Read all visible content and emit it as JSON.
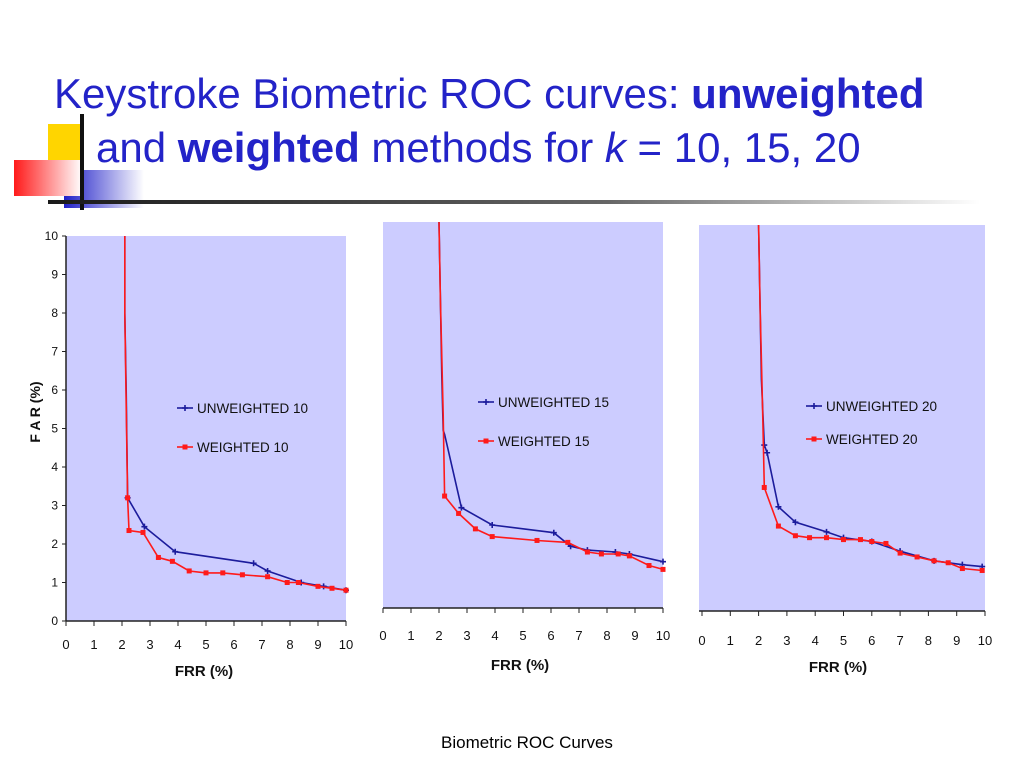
{
  "title": {
    "line1_plain": "Keystroke Biometric ROC curves: ",
    "line1_bold": "unweighted",
    "line2_plain_a": "and ",
    "line2_bold": "weighted",
    "line2_plain_b": " methods for ",
    "line2_italic": "k",
    "line2_plain_c": " = 10, 15, 20"
  },
  "footer": "Biometric ROC Curves",
  "colors": {
    "title": "#2323c8",
    "plot_bg": "#ccccff",
    "unweighted": "#1c1c9c",
    "weighted": "#ff1a1a",
    "deco_yellow": "#ffd500",
    "deco_blue": "#2a2ad0",
    "deco_red": "#ff3030"
  },
  "chart_data": [
    {
      "type": "line",
      "xlabel": "FRR (%)",
      "ylabel": "F A R (%)",
      "xlim": [
        0,
        10
      ],
      "ylim": [
        0,
        10
      ],
      "xticks": [
        "0",
        "1",
        "2",
        "3",
        "4",
        "5",
        "6",
        "7",
        "8",
        "9",
        "10"
      ],
      "yticks": [
        "0",
        "1",
        "2",
        "3",
        "4",
        "5",
        "6",
        "7",
        "8",
        "9",
        "10"
      ],
      "grid": false,
      "legend_position": "center-right",
      "series": [
        {
          "name": "UNWEIGHTED 10",
          "color": "#1c1c9c",
          "x": [
            2.1,
            2.1,
            2.15,
            2.2,
            2.8,
            3.9,
            6.7,
            7.2,
            8.4,
            9.2,
            10.0
          ],
          "y": [
            10.0,
            8.0,
            6.0,
            3.2,
            2.45,
            1.8,
            1.5,
            1.3,
            1.0,
            0.9,
            0.8
          ]
        },
        {
          "name": "WEIGHTED 10",
          "color": "#ff1a1a",
          "x": [
            2.1,
            2.1,
            2.2,
            2.25,
            2.75,
            3.3,
            3.8,
            4.4,
            5.0,
            5.6,
            6.3,
            7.2,
            7.9,
            8.3,
            9.0,
            9.5,
            10.0
          ],
          "y": [
            10.0,
            8.0,
            3.2,
            2.35,
            2.3,
            1.65,
            1.55,
            1.3,
            1.25,
            1.25,
            1.2,
            1.15,
            1.0,
            1.0,
            0.9,
            0.85,
            0.8
          ]
        }
      ]
    },
    {
      "type": "line",
      "xlabel": "FRR (%)",
      "ylabel": "",
      "xlim": [
        0,
        10
      ],
      "ylim": [
        0,
        10
      ],
      "xticks": [
        "0",
        "1",
        "2",
        "3",
        "4",
        "5",
        "6",
        "7",
        "8",
        "9",
        "10"
      ],
      "yticks": [],
      "grid": false,
      "legend_position": "center-right",
      "series": [
        {
          "name": "UNWEIGHTED 15",
          "color": "#1c1c9c",
          "x": [
            2.0,
            2.05,
            2.1,
            2.15,
            2.2,
            2.8,
            3.9,
            6.1,
            6.7,
            7.3,
            8.3,
            8.8,
            10.0
          ],
          "y": [
            10.0,
            8.0,
            6.0,
            4.6,
            4.5,
            2.6,
            2.15,
            1.95,
            1.6,
            1.5,
            1.45,
            1.4,
            1.2
          ]
        },
        {
          "name": "WEIGHTED 15",
          "color": "#ff1a1a",
          "x": [
            2.0,
            2.05,
            2.15,
            2.2,
            2.7,
            3.3,
            3.9,
            5.5,
            6.6,
            7.3,
            7.8,
            8.4,
            8.8,
            9.5,
            10.0
          ],
          "y": [
            10.0,
            8.0,
            5.0,
            2.9,
            2.45,
            2.05,
            1.85,
            1.75,
            1.7,
            1.45,
            1.4,
            1.4,
            1.35,
            1.1,
            1.0
          ]
        }
      ]
    },
    {
      "type": "line",
      "xlabel": "FRR (%)",
      "ylabel": "",
      "xlim": [
        0,
        10
      ],
      "ylim": [
        0,
        10
      ],
      "xticks": [
        "0",
        "1",
        "2",
        "3",
        "4",
        "5",
        "6",
        "7",
        "8",
        "9",
        "10"
      ],
      "yticks": [],
      "grid": false,
      "legend_position": "center-right",
      "series": [
        {
          "name": "UNWEIGHTED 20",
          "color": "#1c1c9c",
          "x": [
            2.0,
            2.05,
            2.1,
            2.2,
            2.3,
            2.7,
            3.3,
            4.4,
            5.0,
            6.0,
            7.0,
            8.2,
            9.2,
            9.9
          ],
          "y": [
            10.0,
            8.0,
            6.0,
            4.3,
            4.1,
            2.7,
            2.3,
            2.05,
            1.9,
            1.8,
            1.55,
            1.3,
            1.2,
            1.15
          ]
        },
        {
          "name": "WEIGHTED 20",
          "color": "#ff1a1a",
          "x": [
            2.0,
            2.05,
            2.15,
            2.2,
            2.7,
            3.3,
            3.8,
            4.4,
            5.0,
            5.6,
            6.0,
            6.5,
            7.0,
            7.6,
            8.2,
            8.7,
            9.2,
            9.9
          ],
          "y": [
            10.0,
            8.0,
            5.0,
            3.2,
            2.2,
            1.95,
            1.9,
            1.9,
            1.85,
            1.85,
            1.8,
            1.75,
            1.5,
            1.4,
            1.3,
            1.25,
            1.1,
            1.05
          ]
        }
      ]
    }
  ]
}
